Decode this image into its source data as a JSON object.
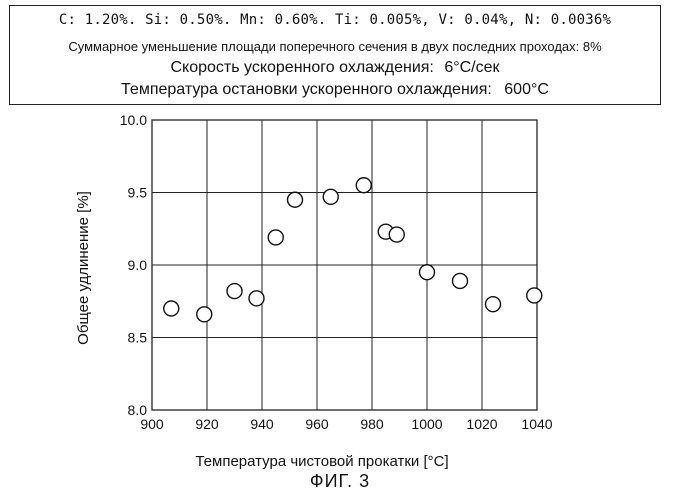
{
  "header": {
    "line1": "C: 1.20%. Si: 0.50%. Mn: 0.60%. Ti: 0.005%, V: 0.04%, N: 0.0036%",
    "line2": "Суммарное уменьшение площади поперечного сечения в двух последних проходах: 8%",
    "line3_label": "Скорость ускоренного охлаждения:",
    "line3_value": "6°C/сек",
    "line4_label": "Температура остановки ускоренного охлаждения:",
    "line4_value": "600°C"
  },
  "figure_label": "ФИГ. 3",
  "chart_data": {
    "type": "scatter",
    "title": "",
    "xlabel": "Температура чистовой прокатки [°C]",
    "ylabel": "Общее удлинение [%]",
    "xlim": [
      900,
      1040
    ],
    "ylim": [
      8.0,
      10.0
    ],
    "xticks": [
      900,
      920,
      940,
      960,
      980,
      1000,
      1020,
      1040
    ],
    "xtick_labels": [
      "900",
      "920",
      "940",
      "960",
      "980",
      "1000",
      "1020",
      "1040"
    ],
    "yticks": [
      8.0,
      8.5,
      9.0,
      9.5,
      10.0
    ],
    "ytick_labels": [
      "8.0",
      "8.5",
      "9.0",
      "9.5",
      "10.0"
    ],
    "grid": true,
    "marker": "open-circle",
    "points": [
      {
        "x": 907,
        "y": 8.7
      },
      {
        "x": 919,
        "y": 8.66
      },
      {
        "x": 930,
        "y": 8.82
      },
      {
        "x": 938,
        "y": 8.77
      },
      {
        "x": 945,
        "y": 9.19
      },
      {
        "x": 952,
        "y": 9.45
      },
      {
        "x": 965,
        "y": 9.47
      },
      {
        "x": 977,
        "y": 9.55
      },
      {
        "x": 985,
        "y": 9.23
      },
      {
        "x": 989,
        "y": 9.21
      },
      {
        "x": 1000,
        "y": 8.95
      },
      {
        "x": 1012,
        "y": 8.89
      },
      {
        "x": 1024,
        "y": 8.73
      },
      {
        "x": 1039,
        "y": 8.79
      }
    ]
  }
}
